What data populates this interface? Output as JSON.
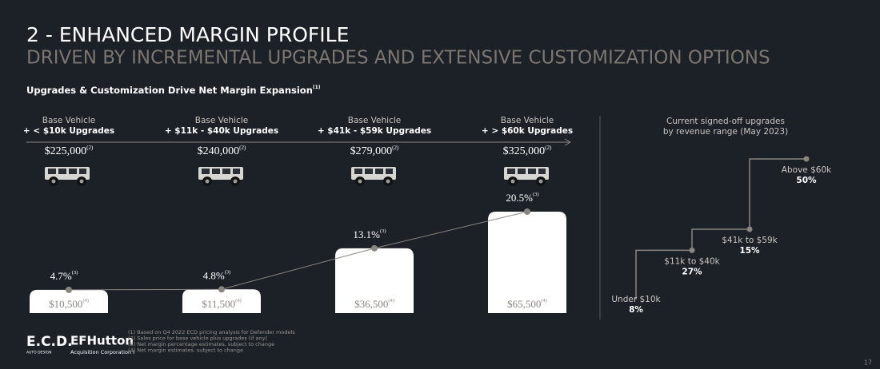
{
  "title": "2 - ENHANCED MARGIN PROFILE",
  "subtitle": "DRIVEN BY INCREMENTAL UPGRADES AND EXTENSIVE CUSTOMIZATION OPTIONS",
  "section_title": {
    "text": "Upgrades & Customization Drive Net Margin Expansion",
    "note": "(1)"
  },
  "chart_data": [
    {
      "type": "bar-line",
      "categories": [
        [
          "Base Vehicle",
          "+ < $10k Upgrades"
        ],
        [
          "Base Vehicle",
          "+ $11k - $40k Upgrades"
        ],
        [
          "Base Vehicle",
          "+ $41k - $59k Upgrades"
        ],
        [
          "Base Vehicle",
          "+ > $60k Upgrades"
        ]
      ],
      "prices": [
        "$225,000",
        "$240,000",
        "$279,000",
        "$325,000"
      ],
      "price_note": "(2)",
      "series": [
        {
          "values": [
            10500,
            11500,
            36500,
            65500
          ],
          "value_labels": [
            "$10,500",
            "$11,500",
            "$36,500",
            "$65,500"
          ],
          "note": "(4)",
          "color": "#ffffff"
        },
        {
          "values": [
            4.7,
            4.8,
            13.1,
            20.5
          ],
          "value_labels": [
            "4.7%",
            "4.8%",
            "13.1%",
            "20.5%"
          ],
          "note": "(3)",
          "color": "#8a8580"
        }
      ]
    },
    {
      "type": "step",
      "title": [
        "Current signed-off upgrades",
        "by revenue range (May 2023)"
      ],
      "categories": [
        "Under $10k",
        "$11k to $40k",
        "$41k to $59k",
        "Above $60k"
      ],
      "values": [
        8,
        27,
        15,
        50
      ],
      "value_labels": [
        "8%",
        "27%",
        "15%",
        "50%"
      ],
      "color": "#8a8580"
    }
  ],
  "footnotes": [
    "(1) Based on Q4 2022 ECD pricing analysis for Defender models",
    "(2) Sales price for base vehicle plus upgrades (if any)",
    "(3) Net margin percentage estimates, subject to change",
    "(4) Net margin estimates, subject to change"
  ],
  "logos": {
    "ecd": "E.C.D.",
    "ecd_sub": "AUTO DESIGN",
    "efhutton": "EFHutton",
    "efhutton_sub": "Acquisition Corporation I"
  },
  "page_number": "17"
}
